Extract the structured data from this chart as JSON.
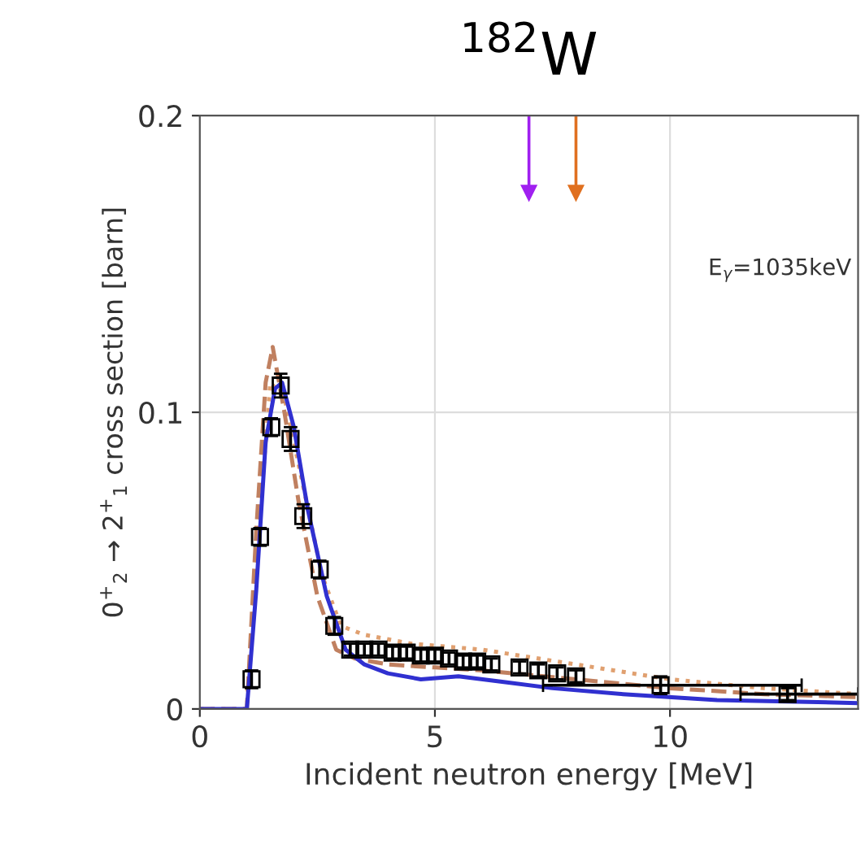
{
  "chart_data": {
    "type": "line",
    "title": "$^{182}$W",
    "xlabel": "Incident neutron energy [MeV]",
    "ylabel": "0$^{+}$$_{2}$ → 2$^{+}$$_{1}$ cross section [barn]",
    "annotations": [
      "E$_{γ}$=1035keV"
    ],
    "xlim": [
      0,
      14
    ],
    "ylim": [
      0,
      0.2
    ],
    "xticks": [
      0,
      5,
      10
    ],
    "yticks": [
      0,
      0.1,
      0.2
    ],
    "grid": true,
    "ref_lines": [
      {
        "axis": "x",
        "value": 7,
        "color": "#a020f0"
      },
      {
        "axis": "x",
        "value": 8,
        "color": "#e07020"
      }
    ],
    "series": [
      {
        "color": "#e0a070",
        "line_style": "dotted",
        "x": [
          0,
          1.0,
          1.3,
          1.5,
          1.8,
          2.2,
          2.6,
          3.0,
          3.5,
          4.5,
          6,
          8,
          10,
          12,
          14
        ],
        "values": [
          0,
          0,
          0.07,
          0.11,
          0.105,
          0.075,
          0.045,
          0.028,
          0.025,
          0.022,
          0.02,
          0.015,
          0.01,
          0.007,
          0.005
        ]
      },
      {
        "color": "#c08060",
        "line_style": "dashed",
        "x": [
          0,
          1.0,
          1.2,
          1.4,
          1.55,
          1.8,
          2.1,
          2.5,
          2.9,
          3.3,
          4,
          5,
          6,
          8,
          10,
          12,
          14
        ],
        "values": [
          0,
          0,
          0.06,
          0.11,
          0.122,
          0.1,
          0.07,
          0.038,
          0.02,
          0.017,
          0.015,
          0.014,
          0.013,
          0.01,
          0.007,
          0.005,
          0.004
        ]
      },
      {
        "color": "#3030d0",
        "line_style": "solid",
        "x": [
          0,
          1.0,
          1.2,
          1.4,
          1.6,
          1.75,
          2.0,
          2.3,
          2.7,
          3.1,
          3.5,
          4.0,
          4.7,
          5.5,
          6.5,
          7.5,
          9,
          11,
          14
        ],
        "values": [
          0,
          0,
          0.04,
          0.09,
          0.108,
          0.11,
          0.095,
          0.067,
          0.038,
          0.02,
          0.015,
          0.012,
          0.01,
          0.011,
          0.009,
          0.007,
          0.005,
          0.003,
          0.002
        ]
      },
      {
        "type": "scatter",
        "color": "#000000",
        "marker": "square",
        "x": [
          1.1,
          1.28,
          1.52,
          1.72,
          1.93,
          2.2,
          2.55,
          2.86,
          3.2,
          3.5,
          3.8,
          4.1,
          4.4,
          4.7,
          5.0,
          5.3,
          5.6,
          5.9,
          6.2,
          6.8,
          7.2,
          7.6,
          8.0,
          9.8,
          12.5
        ],
        "values": [
          0.01,
          0.058,
          0.095,
          0.109,
          0.091,
          0.065,
          0.047,
          0.028,
          0.02,
          0.02,
          0.02,
          0.019,
          0.019,
          0.018,
          0.018,
          0.017,
          0.016,
          0.016,
          0.015,
          0.014,
          0.013,
          0.012,
          0.011,
          0.008,
          0.005
        ],
        "errors": [
          0.003,
          0.003,
          0.003,
          0.004,
          0.004,
          0.004,
          0.003,
          0.003,
          0.002,
          0.002,
          0.002,
          0.002,
          0.002,
          0.002,
          0.002,
          0.002,
          0.002,
          0.002,
          0.002,
          0.002,
          0.002,
          0.002,
          0.002,
          0.003,
          0.002
        ],
        "xerrors": [
          null,
          null,
          null,
          null,
          null,
          null,
          null,
          null,
          null,
          null,
          null,
          null,
          null,
          null,
          null,
          null,
          null,
          null,
          null,
          null,
          null,
          null,
          null,
          [
            7.3,
            12.8
          ],
          [
            11.5,
            14
          ]
        ]
      }
    ]
  }
}
